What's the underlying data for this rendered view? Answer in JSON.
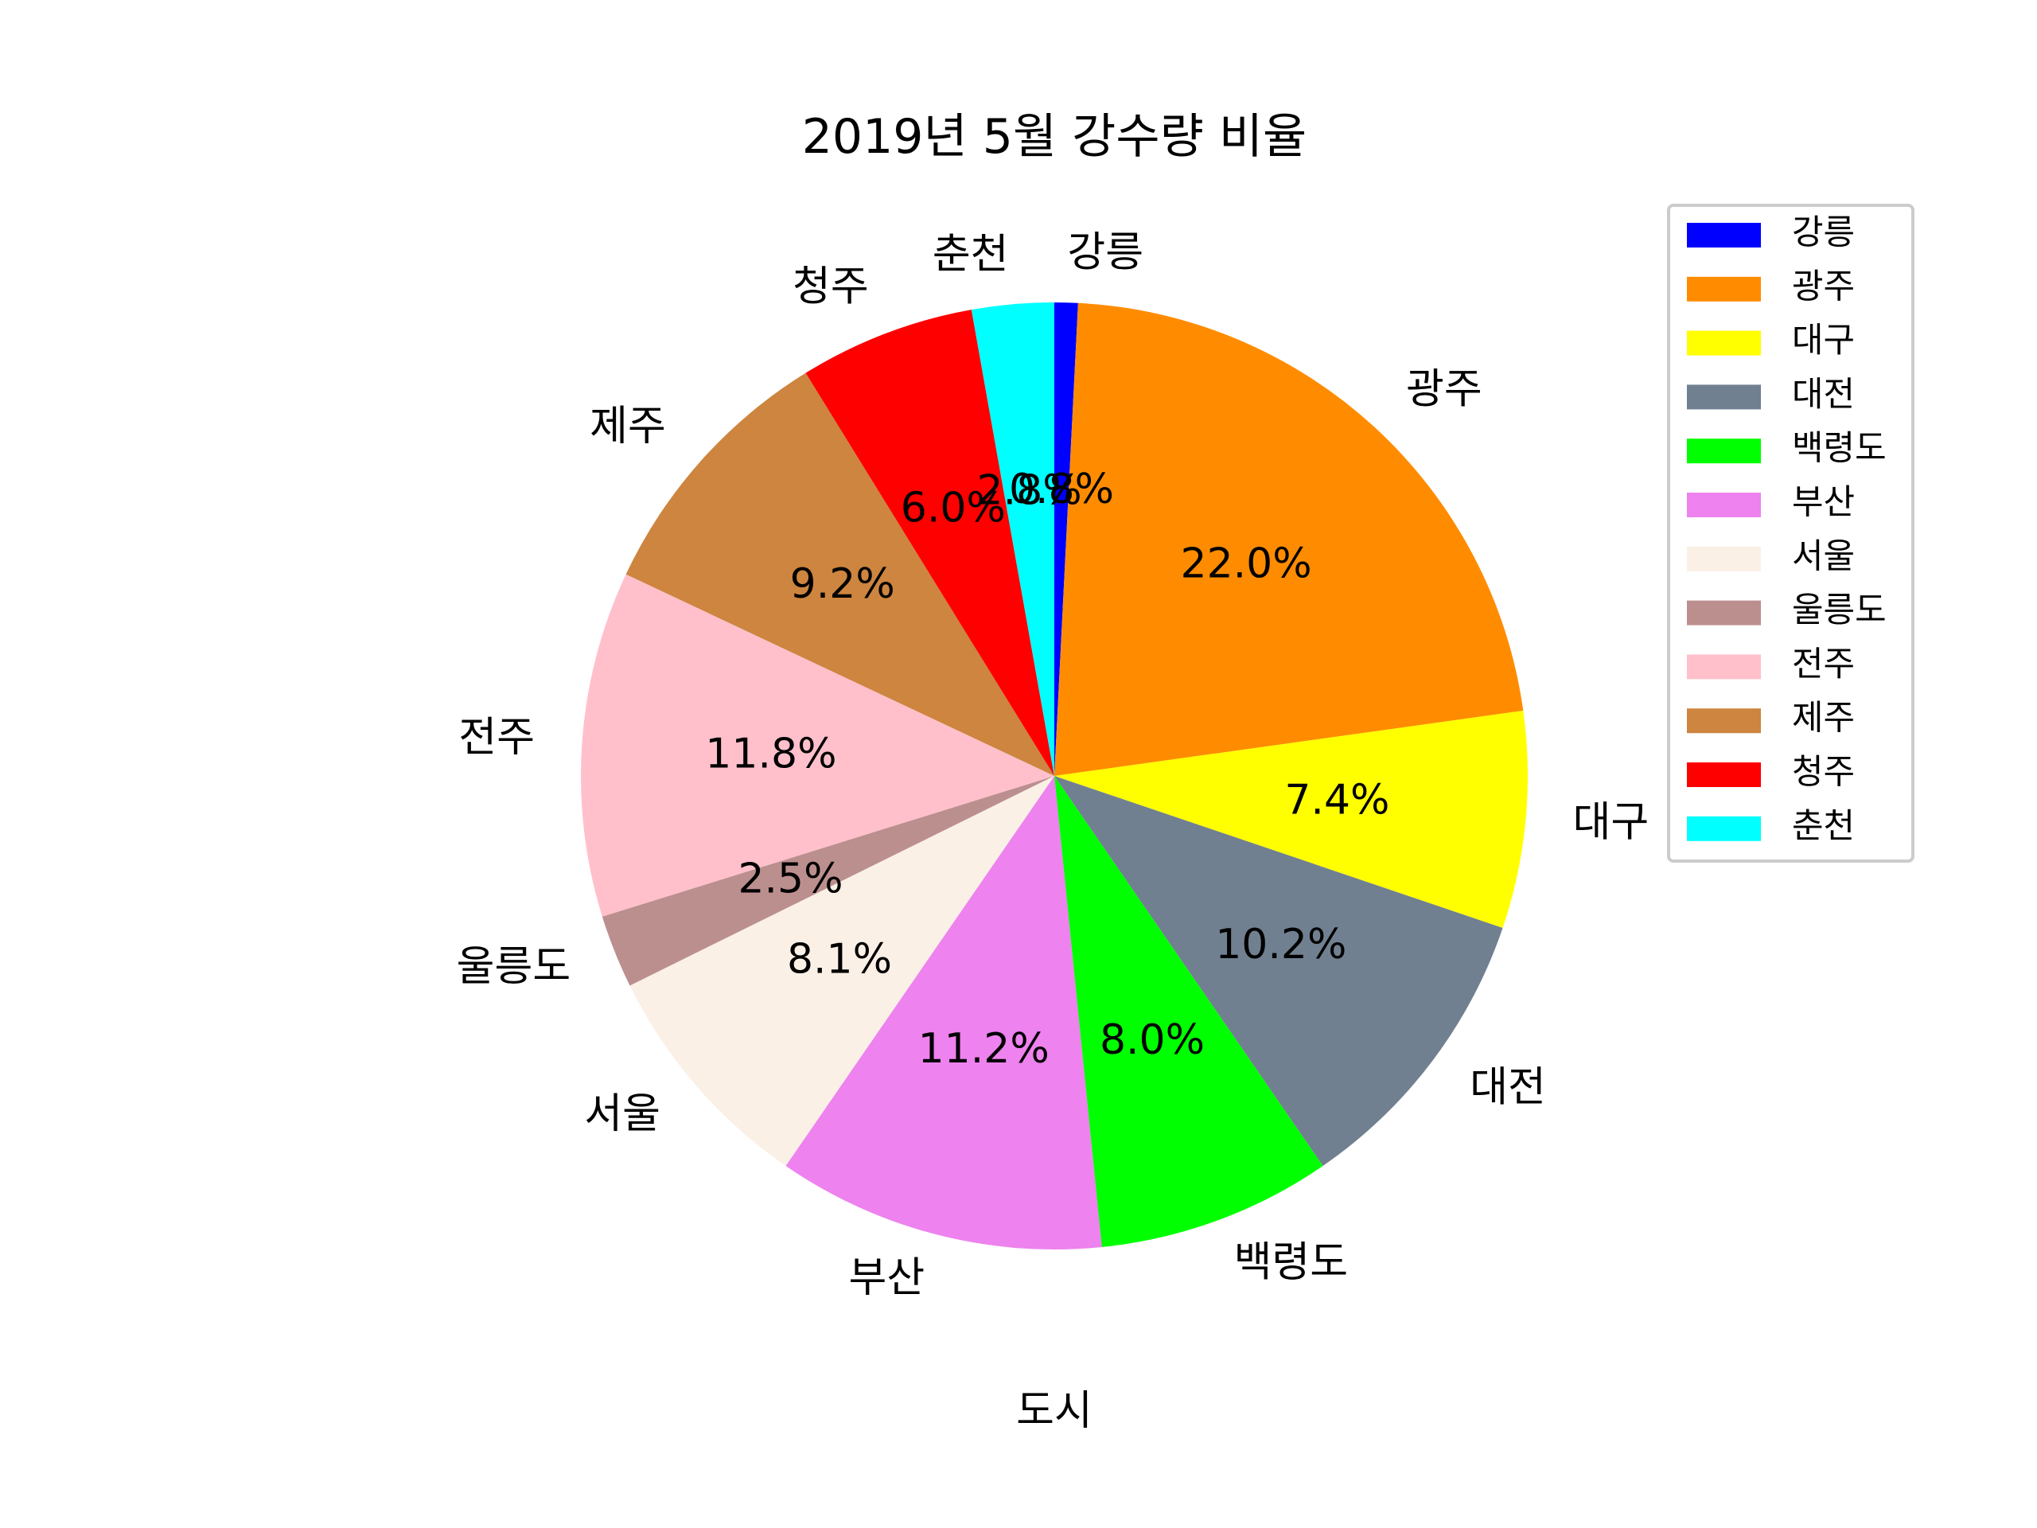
{
  "chart_data": {
    "type": "pie",
    "title": "2019년 5월 강수량 비율",
    "xlabel": "도시",
    "ylabel": "",
    "legend_position": "upper-right",
    "categories": [
      "강릉",
      "광주",
      "대구",
      "대전",
      "백령도",
      "부산",
      "서울",
      "울릉도",
      "전주",
      "제주",
      "청주",
      "춘천"
    ],
    "values": [
      0.8,
      22.0,
      7.4,
      10.2,
      8.0,
      11.2,
      8.1,
      2.5,
      11.8,
      9.2,
      6.0,
      2.8
    ],
    "percent_labels": [
      "0.8%",
      "22.0%",
      "7.4%",
      "10.2%",
      "8.0%",
      "11.2%",
      "8.1%",
      "2.5%",
      "11.8%",
      "9.2%",
      "6.0%",
      "2.8%"
    ],
    "colors": [
      "#0000ff",
      "#ff8c00",
      "#ffff00",
      "#708090",
      "#00ff00",
      "#ee82ee",
      "#faf0e6",
      "#bc8f8f",
      "#ffc0cb",
      "#cd853f",
      "#ff0000",
      "#00ffff"
    ],
    "start_angle_deg": 90,
    "direction": "clockwise"
  }
}
